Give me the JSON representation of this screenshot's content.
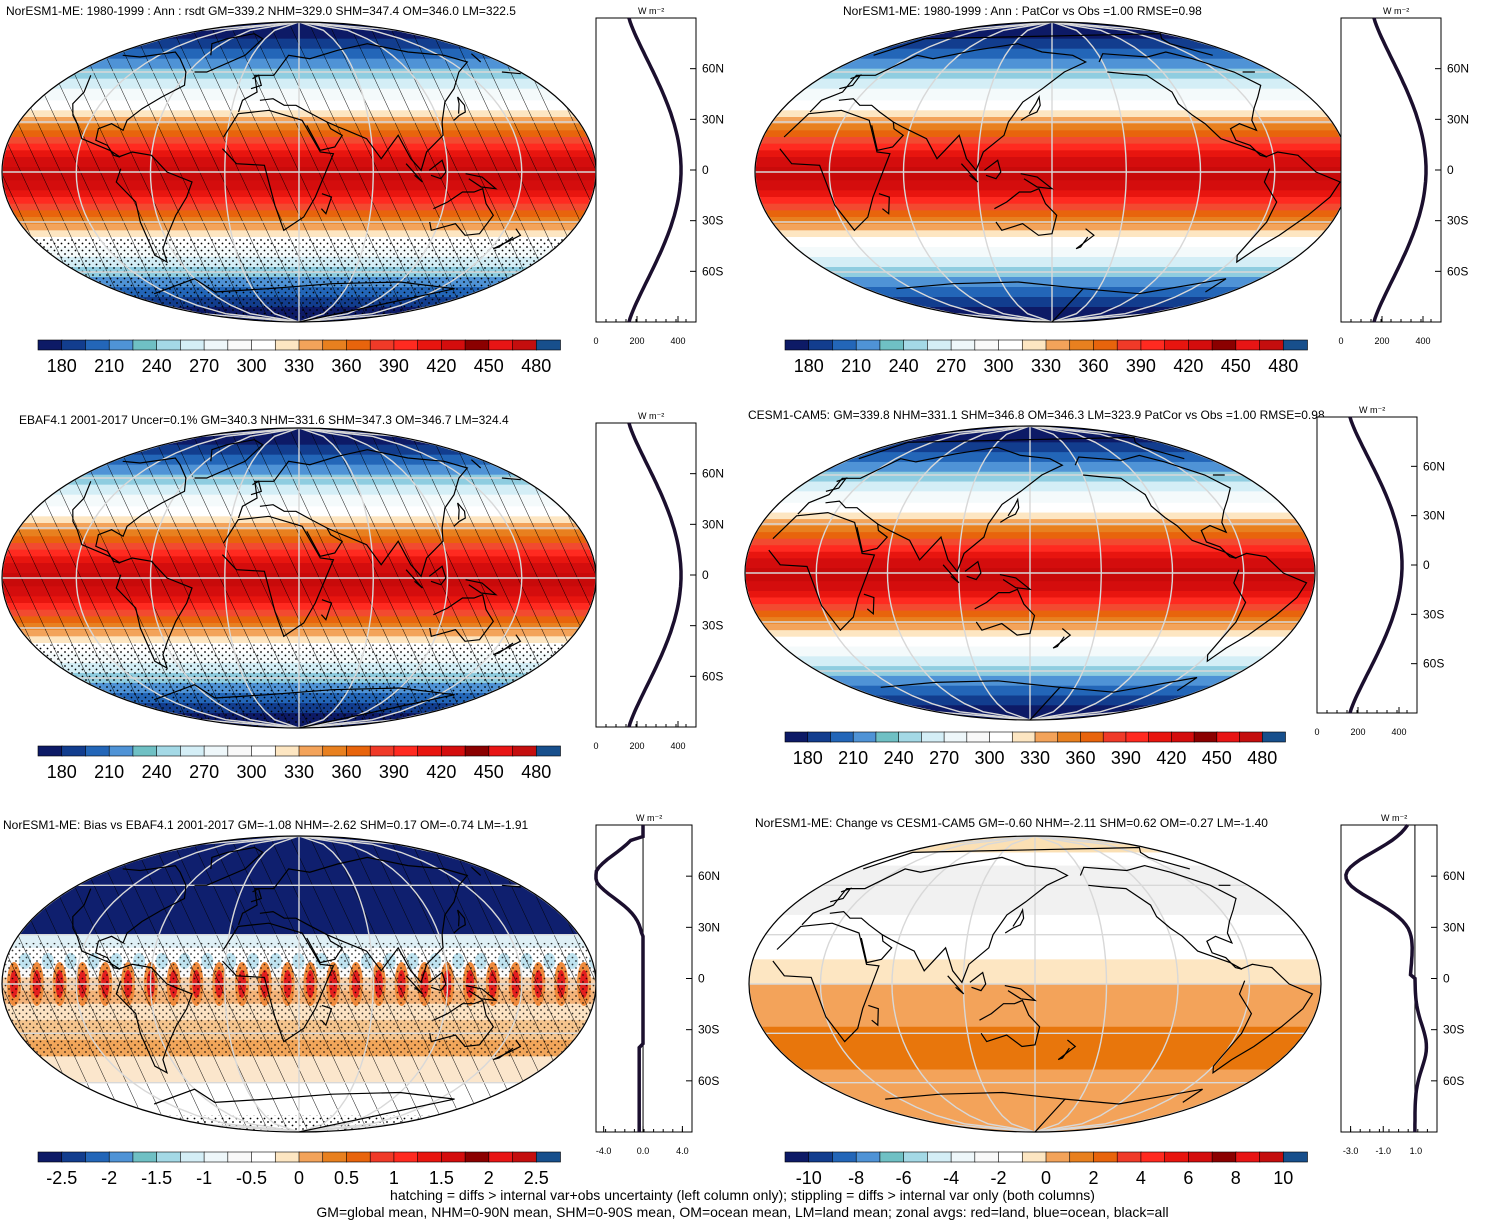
{
  "panels": [
    {
      "title": "NorESM1-ME: 1980-1999 : Ann : rsdt GM=339.2 NHM=329.0 SHM=347.4 OM=346.0 LM=322.5",
      "palette": "abs",
      "hatch": true,
      "stipple": "south",
      "cbar_labels": [
        "180",
        "210",
        "240",
        "270",
        "300",
        "330",
        "360",
        "390",
        "420",
        "450",
        "480"
      ],
      "unit": "W m⁻²",
      "lat_labels": [
        "60N",
        "30N",
        "0",
        "30S",
        "60S"
      ],
      "xticks": [
        "0",
        "200",
        "400"
      ],
      "profile": "rsdt"
    },
    {
      "title": "NorESM1-ME: 1980-1999 : Ann : PatCor vs Obs =1.00 RMSE=0.98",
      "palette": "abs",
      "hatch": false,
      "stipple": "none",
      "cbar_labels": [
        "180",
        "210",
        "240",
        "270",
        "300",
        "330",
        "360",
        "390",
        "420",
        "450",
        "480"
      ],
      "unit": "W m⁻²",
      "lat_labels": [
        "60N",
        "30N",
        "0",
        "30S",
        "60S"
      ],
      "xticks": [
        "0",
        "200",
        "400"
      ],
      "profile": "rsdt"
    },
    {
      "title": "EBAF4.1 2001-2017 Uncer=0.1% GM=340.3 NHM=331.6 SHM=347.3 OM=346.7 LM=324.4",
      "palette": "abs",
      "hatch": true,
      "stipple": "south",
      "cbar_labels": [
        "180",
        "210",
        "240",
        "270",
        "300",
        "330",
        "360",
        "390",
        "420",
        "450",
        "480"
      ],
      "unit": "W m⁻²",
      "lat_labels": [
        "60N",
        "30N",
        "0",
        "30S",
        "60S"
      ],
      "xticks": [
        "0",
        "200",
        "400"
      ],
      "profile": "rsdt"
    },
    {
      "title": "CESM1-CAM5: GM=339.8 NHM=331.1 SHM=346.8 OM=346.3 LM=323.9 PatCor vs Obs =1.00 RMSE=0.98",
      "palette": "abs",
      "hatch": false,
      "stipple": "none",
      "cbar_labels": [
        "180",
        "210",
        "240",
        "270",
        "300",
        "330",
        "360",
        "390",
        "420",
        "450",
        "480"
      ],
      "unit": "W m⁻²",
      "lat_labels": [
        "60N",
        "30N",
        "0",
        "30S",
        "60S"
      ],
      "xticks": [
        "0",
        "200",
        "400"
      ],
      "profile": "rsdt"
    },
    {
      "title": "NorESM1-ME: Bias vs EBAF4.1 2001-2017 GM=-1.08 NHM=-2.62 SHM=0.17 OM=-0.74 LM=-1.91",
      "palette": "bias",
      "hatch": true,
      "stipple": "tropics",
      "cbar_labels": [
        "-2.5",
        "-2",
        "-1.5",
        "-1",
        "-0.5",
        "0",
        "0.5",
        "1",
        "1.5",
        "2",
        "2.5"
      ],
      "unit": "W m⁻²",
      "lat_labels": [
        "60N",
        "30N",
        "0",
        "30S",
        "60S"
      ],
      "xticks": [
        "-4.0",
        "0.0",
        "4.0"
      ],
      "profile": "bias"
    },
    {
      "title": "NorESM1-ME: Change vs CESM1-CAM5 GM=-0.60 NHM=-2.11 SHM=0.62 OM=-0.27 LM=-1.40",
      "palette": "change",
      "hatch": false,
      "stipple": "none",
      "cbar_labels": [
        "-10",
        "-8",
        "-6",
        "-4",
        "-2",
        "0",
        "2",
        "4",
        "6",
        "8",
        "10"
      ],
      "unit": "W m⁻²",
      "lat_labels": [
        "60N",
        "30N",
        "0",
        "30S",
        "60S"
      ],
      "xticks": [
        "-3.0",
        "-1.0",
        "1.0"
      ],
      "profile": "change"
    }
  ],
  "footer": {
    "line1": "hatching = diffs > internal var+obs uncertainty (left column only); stippling = diffs > internal var only (both columns)",
    "line2": "GM=global mean, NHM=0-90N mean, SHM=0-90S mean, OM=ocean mean, LM=land mean; zonal avgs: red=land, blue=ocean, black=all"
  },
  "colors": {
    "abs": [
      "#0d1a66",
      "#123d8e",
      "#2a6fc2",
      "#5aa1dc",
      "#6fc4c8",
      "#a8dbe8",
      "#d8f0f6",
      "#f7fbfc",
      "#f7f7f7",
      "#fbe0b4",
      "#f2a65a",
      "#e8801f",
      "#e8640c",
      "#f03a28",
      "#ee1c17",
      "#d20e0e",
      "#b00d0d",
      "#7a0a0a",
      "#e51a1a",
      "#ff2020",
      "#c01010",
      "#0b4f91"
    ],
    "bias": [
      "#0d1a66",
      "#123d8e",
      "#2a6fc2",
      "#5aa1dc",
      "#6fc4c8",
      "#a8dbe8",
      "#d8f0f6",
      "#f7fbfc",
      "#f7f7f7",
      "#fbe0b4",
      "#f2a65a",
      "#e8801f",
      "#e8640c",
      "#f03a28",
      "#ee1c17",
      "#d20e0e",
      "#b00d0d",
      "#7a0a0a",
      "#e51a1a",
      "#ff2020",
      "#c01010",
      "#0b4f91"
    ],
    "change": [
      "#0d1a66",
      "#123d8e",
      "#2a6fc2",
      "#5aa1dc",
      "#6fc4c8",
      "#a8dbe8",
      "#d8f0f6",
      "#f7fbfc",
      "#f7f7f7",
      "#fbe0b4",
      "#f2a65a",
      "#e8801f",
      "#e8640c",
      "#f03a28",
      "#ee1c17",
      "#d20e0e",
      "#b00d0d",
      "#7a0a0a",
      "#e51a1a",
      "#ff2020",
      "#c01010",
      "#0b4f91"
    ]
  }
}
